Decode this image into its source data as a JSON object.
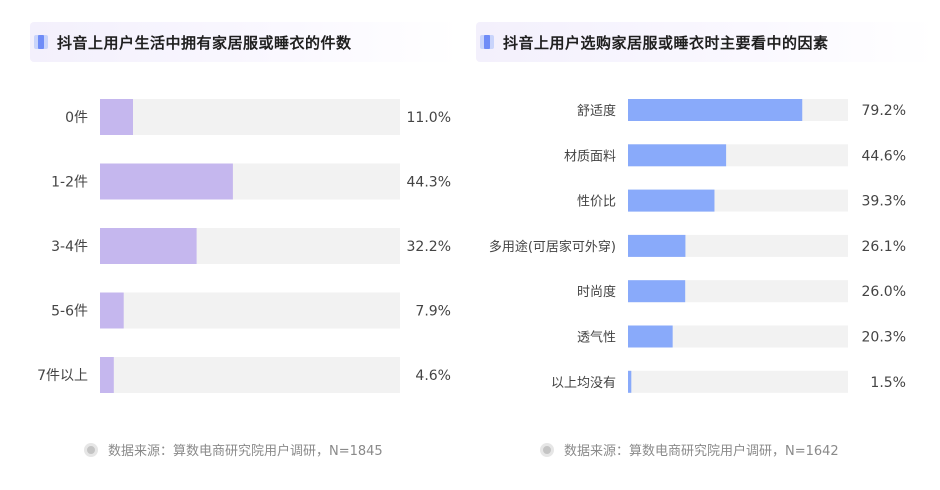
{
  "colors": {
    "left_bar": "#c5b7ee",
    "right_bar": "#89aafa",
    "track": "#f2f2f2",
    "title_icon_light": "#c9d4fb",
    "title_icon_dark": "#6f8cf7"
  },
  "charts": [
    {
      "icon": "bookmark-icon",
      "footer_icon": "info-dot-icon",
      "footer": "数据来源：算数电商研究院用户调研，N=1845"
    },
    {
      "icon": "bookmark-icon",
      "footer_icon": "info-dot-icon",
      "footer": "数据来源：算数电商研究院用户调研，N=1642"
    }
  ],
  "chart_data": [
    {
      "type": "bar",
      "orientation": "horizontal",
      "title": "抖音上用户生活中拥有家居服或睡衣的件数",
      "categories": [
        "0件",
        "1-2件",
        "3-4件",
        "5-6件",
        "7件以上"
      ],
      "values": [
        11.0,
        44.3,
        32.2,
        7.9,
        4.6
      ],
      "value_labels": [
        "11.0%",
        "44.3%",
        "32.2%",
        "7.9%",
        "4.6%"
      ],
      "unit": "%",
      "xlim": [
        0,
        100
      ],
      "grid": false,
      "legend": "none"
    },
    {
      "type": "bar",
      "orientation": "horizontal",
      "title": "抖音上用户选购家居服或睡衣时主要看中的因素",
      "categories": [
        "舒适度",
        "材质面料",
        "性价比",
        "多用途(可居家可外穿)",
        "时尚度",
        "透气性",
        "以上均没有"
      ],
      "values": [
        79.2,
        44.6,
        39.3,
        26.1,
        26.0,
        20.3,
        1.5
      ],
      "value_labels": [
        "79.2%",
        "44.6%",
        "39.3%",
        "26.1%",
        "26.0%",
        "20.3%",
        "1.5%"
      ],
      "unit": "%",
      "xlim": [
        0,
        100
      ],
      "grid": false,
      "legend": "none"
    }
  ]
}
